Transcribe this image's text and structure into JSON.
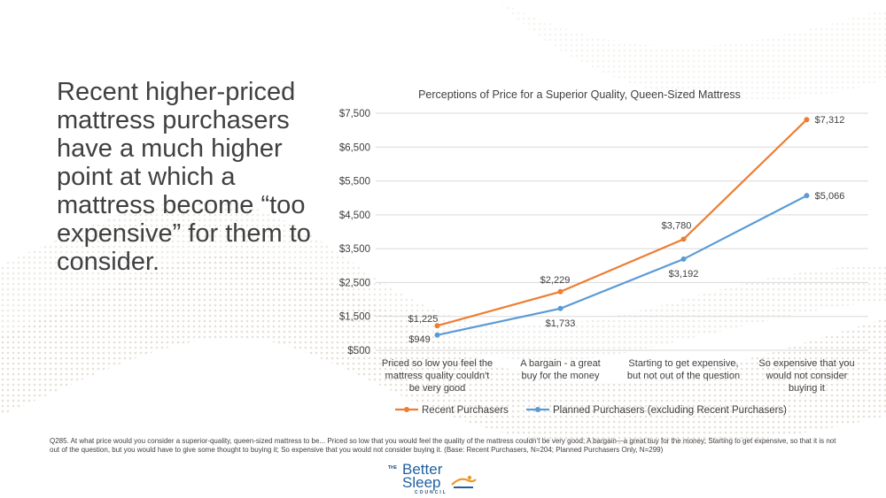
{
  "slide": {
    "headline": "Recent higher-priced mattress purchasers have a much higher point at which a mattress become “too expensive” for them to consider.",
    "footnote": "Q285. At what price would you consider a superior-quality, queen-sized mattress to be... Priced so low that you would feel the quality of the mattress couldn’t be very good; A bargain—a great buy for the money; Starting to get expensive, so that it is not out of the question, but you would have to give some thought to buying it; So expensive that you would not consider buying it. (Base: Recent Purchasers, N=204; Planned Purchasers Only, N=299)"
  },
  "logo": {
    "the": "THE",
    "better": "Better",
    "sleep": "Sleep",
    "council": "COUNCIL",
    "mark_icon": "bed-figure-icon"
  },
  "colors": {
    "recent": "#ED7D31",
    "planned": "#5B9BD5",
    "grid": "#d9d9d9",
    "text": "#404040"
  },
  "chart_data": {
    "type": "line",
    "title": "Perceptions of Price for a Superior Quality, Queen-Sized Mattress",
    "categories": [
      [
        "Priced so low you feel the",
        "mattress quality couldn't",
        "be very good"
      ],
      [
        "A bargain - a great",
        "buy for the money"
      ],
      [
        "Starting to get expensive,",
        "but not out of the question"
      ],
      [
        "So expensive that you",
        "would not consider",
        "buying it"
      ]
    ],
    "series": [
      {
        "name": "Recent Purchasers",
        "values": [
          1225,
          2229,
          3780,
          7312
        ],
        "labels": [
          "$1,225",
          "$2,229",
          "$3,780",
          "$7,312"
        ],
        "color": "#ED7D31"
      },
      {
        "name": "Planned Purchasers (excluding Recent Purchasers)",
        "values": [
          949,
          1733,
          3192,
          5066
        ],
        "labels": [
          "$949",
          "$1,733",
          "$3,192",
          "$5,066"
        ],
        "color": "#5B9BD5"
      }
    ],
    "ylim": [
      500,
      7500
    ],
    "yticks": [
      500,
      1500,
      2500,
      3500,
      4500,
      5500,
      6500,
      7500
    ],
    "ytick_labels": [
      "$500",
      "$1,500",
      "$2,500",
      "$3,500",
      "$4,500",
      "$5,500",
      "$6,500",
      "$7,500"
    ],
    "grid": true,
    "legend_position": "bottom"
  }
}
